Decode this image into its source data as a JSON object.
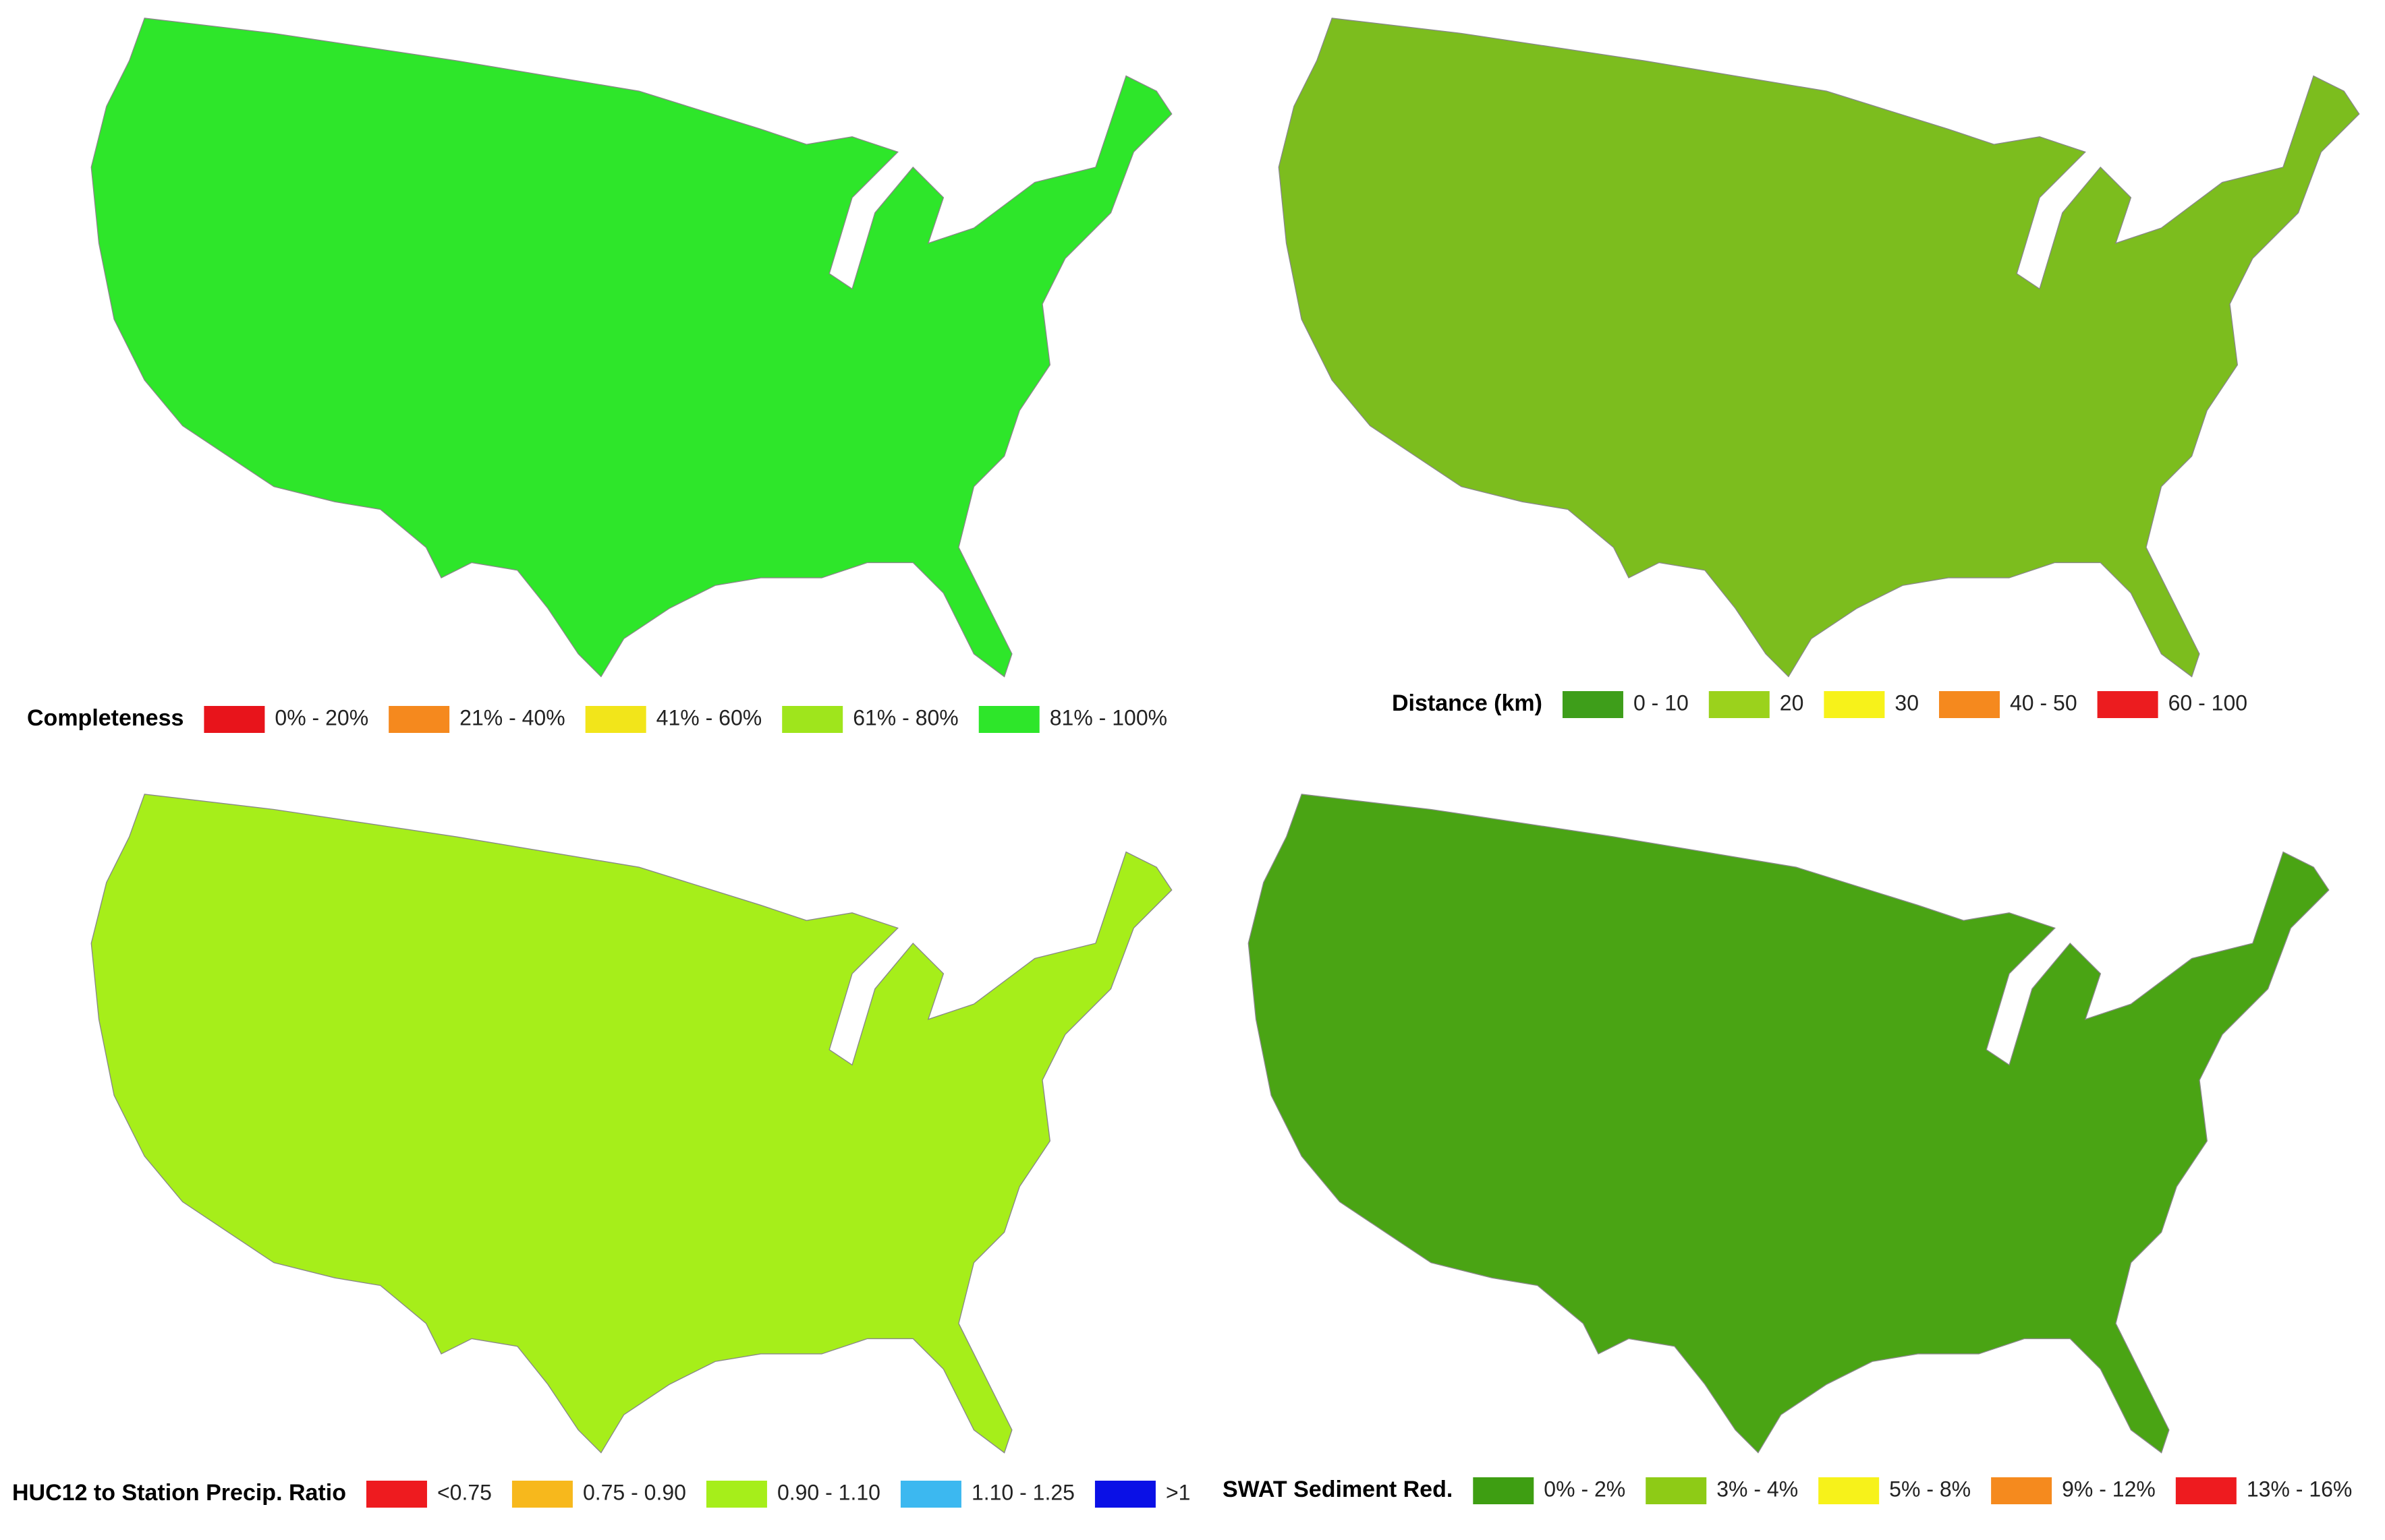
{
  "panels": [
    {
      "legend_title": "Completeness",
      "legend": [
        {
          "label": "0% - 20%",
          "color": "#e8141b"
        },
        {
          "label": "21% - 40%",
          "color": "#f5891e"
        },
        {
          "label": "41% - 60%",
          "color": "#f2e51a"
        },
        {
          "label": "61% - 80%",
          "color": "#9fe51c"
        },
        {
          "label": "81% - 100%",
          "color": "#2ee62a"
        }
      ]
    },
    {
      "legend_title": "Distance (km)",
      "legend": [
        {
          "label": "0 - 10",
          "color": "#3e9e1a"
        },
        {
          "label": "20",
          "color": "#9bd21c"
        },
        {
          "label": "30",
          "color": "#f7f21a"
        },
        {
          "label": "40 - 50",
          "color": "#f5891e"
        },
        {
          "label": "60 - 100",
          "color": "#ec1c1f"
        }
      ]
    },
    {
      "legend_title": "HUC12 to Station Precip. Ratio",
      "legend": [
        {
          "label": "<0.75",
          "color": "#ee1b1f"
        },
        {
          "label": "0.75 - 0.90",
          "color": "#f7b81c"
        },
        {
          "label": "0.90 - 1.10",
          "color": "#a6ee1a"
        },
        {
          "label": "1.10 - 1.25",
          "color": "#3cb8f0"
        },
        {
          "label": ">1",
          "color": "#0a10e6"
        }
      ]
    },
    {
      "legend_title": "SWAT Sediment Red.",
      "legend": [
        {
          "label": "0% - 2%",
          "color": "#3e9e12"
        },
        {
          "label": "3% - 4%",
          "color": "#8ecb16"
        },
        {
          "label": "5% - 8%",
          "color": "#f7f21a"
        },
        {
          "label": "9% - 12%",
          "color": "#f58a1e"
        },
        {
          "label": "13% - 16%",
          "color": "#ee1b1f"
        }
      ]
    }
  ]
}
